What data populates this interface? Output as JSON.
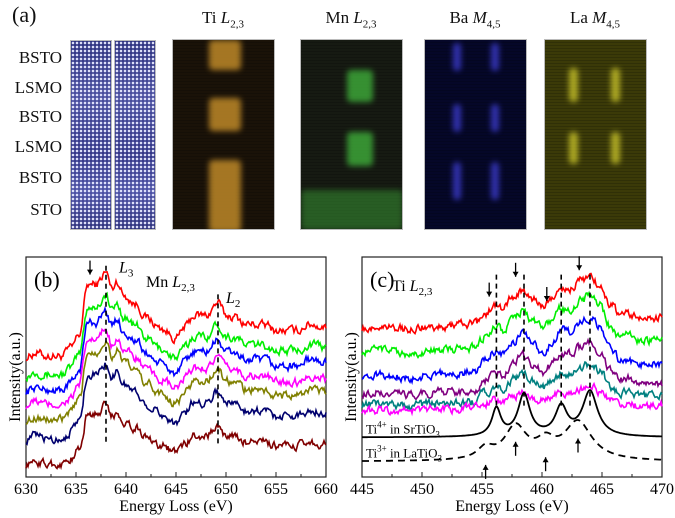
{
  "panel_a": {
    "label": "(a)",
    "layers": [
      "BSTO",
      "LSMO",
      "BSTO",
      "LSMO",
      "BSTO",
      "STO"
    ],
    "maps": [
      {
        "element": "Ti",
        "edge": "L",
        "sub": "2,3",
        "color": "#c8902a"
      },
      {
        "element": "Mn",
        "edge": "L",
        "sub": "2,3",
        "color": "#3fae3a"
      },
      {
        "element": "Ba",
        "edge": "M",
        "sub": "4,5",
        "color": "#3c3ccf"
      },
      {
        "element": "La",
        "edge": "M",
        "sub": "4,5",
        "color": "#c9c42a"
      }
    ]
  },
  "chart_data": [
    {
      "type": "line",
      "panel_label": "(b)",
      "title": "Mn L2,3",
      "title_parts": {
        "element": "Mn",
        "edge": "L",
        "sub": "2,3"
      },
      "xlabel": "Energy Loss (eV)",
      "ylabel": "Intensity(a.u.)",
      "xlim": [
        630,
        660
      ],
      "ylim": [
        0,
        10
      ],
      "xticks": [
        "630",
        "635",
        "640",
        "645",
        "650",
        "655",
        "660"
      ],
      "annotations": [
        {
          "text": "L",
          "sub": "3",
          "x": 639.3,
          "y": 9.3
        },
        {
          "text": "L",
          "sub": "2",
          "x": 650.0,
          "y": 7.9
        }
      ],
      "dashed_lines": [
        638.0,
        649.2
      ],
      "arrows_down": [
        636.4
      ],
      "shape": [
        [
          630,
          0
        ],
        [
          631,
          0.2
        ],
        [
          632,
          0.05
        ],
        [
          633.5,
          0.05
        ],
        [
          634.5,
          0.4
        ],
        [
          635.3,
          1.0
        ],
        [
          636.2,
          3.3
        ],
        [
          637,
          3.3
        ],
        [
          638,
          3.85
        ],
        [
          638.6,
          3.1
        ],
        [
          639.1,
          3.45
        ],
        [
          639.8,
          2.8
        ],
        [
          641,
          2.4
        ],
        [
          642,
          1.8
        ],
        [
          643.5,
          1.3
        ],
        [
          645,
          0.85
        ],
        [
          646,
          1.4
        ],
        [
          646.8,
          1.9
        ],
        [
          648,
          1.9
        ],
        [
          649.2,
          2.45
        ],
        [
          650,
          1.9
        ],
        [
          651,
          1.8
        ],
        [
          652,
          1.5
        ],
        [
          654,
          1.45
        ],
        [
          655,
          1.2
        ],
        [
          657,
          1.2
        ],
        [
          658.4,
          1.5
        ],
        [
          660,
          1.35
        ]
      ],
      "series": [
        {
          "name": "red",
          "color": "#ff0000",
          "offset": 5.45,
          "scale": 1.0
        },
        {
          "name": "green",
          "color": "#00ee00",
          "offset": 4.6,
          "scale": 0.95
        },
        {
          "name": "blue",
          "color": "#0000ff",
          "offset": 3.9,
          "scale": 0.95
        },
        {
          "name": "magenta",
          "color": "#ff00ff",
          "offset": 3.25,
          "scale": 0.9
        },
        {
          "name": "olive",
          "color": "#808000",
          "offset": 2.55,
          "scale": 0.95
        },
        {
          "name": "navy",
          "color": "#00006e",
          "offset": 1.7,
          "scale": 0.9
        },
        {
          "name": "dark-red",
          "color": "#800000",
          "offset": 0.55,
          "scale": 0.7
        }
      ]
    },
    {
      "type": "line",
      "panel_label": "(c)",
      "title": "Ti L2,3",
      "title_parts": {
        "element": "Ti",
        "edge": "L",
        "sub": "2,3"
      },
      "xlabel": "Energy Loss (eV)",
      "ylabel": "Intensity(a.u.)",
      "xlim": [
        445,
        470
      ],
      "ylim": [
        0,
        10
      ],
      "xticks": [
        "445",
        "450",
        "455",
        "460",
        "465",
        "470"
      ],
      "dashed_lines": [
        456.2,
        458.5,
        461.6,
        464.0
      ],
      "arrows_down": [
        455.6,
        457.8,
        460.4,
        463.1
      ],
      "arrows_up": [
        455.3,
        457.8,
        460.3,
        463.0
      ],
      "shape": [
        [
          445,
          0
        ],
        [
          447,
          0.05
        ],
        [
          449,
          -0.1
        ],
        [
          451,
          0.05
        ],
        [
          453,
          0.1
        ],
        [
          454.5,
          0.15
        ],
        [
          455.2,
          0.6
        ],
        [
          456.2,
          1.0
        ],
        [
          456.8,
          0.9
        ],
        [
          457.6,
          1.4
        ],
        [
          458.4,
          1.7
        ],
        [
          459.2,
          1.3
        ],
        [
          460.1,
          0.95
        ],
        [
          460.8,
          1.3
        ],
        [
          461.6,
          1.8
        ],
        [
          462.3,
          1.75
        ],
        [
          463.2,
          2.1
        ],
        [
          464.0,
          2.3
        ],
        [
          464.8,
          1.9
        ],
        [
          465.8,
          1.0
        ],
        [
          466.5,
          0.6
        ],
        [
          467,
          0.7
        ],
        [
          468,
          0.45
        ],
        [
          470,
          0.45
        ]
      ],
      "series": [
        {
          "name": "red",
          "color": "#ff0000",
          "offset": 6.8,
          "scale": 1.0
        },
        {
          "name": "green",
          "color": "#00ee00",
          "offset": 5.7,
          "scale": 1.1
        },
        {
          "name": "blue",
          "color": "#0000ff",
          "offset": 4.6,
          "scale": 1.15
        },
        {
          "name": "purple",
          "color": "#800080",
          "offset": 3.8,
          "scale": 1.0
        },
        {
          "name": "teal",
          "color": "#008080",
          "offset": 3.3,
          "scale": 0.8
        },
        {
          "name": "magenta",
          "color": "#ff00ff",
          "offset": 3.05,
          "scale": 0.45
        }
      ],
      "references": [
        {
          "label": "Ti",
          "charge": "4+",
          "host": "in SrTiO",
          "host_sub": "3",
          "color": "#000000",
          "dashed": false,
          "baseline": 1.8,
          "peaks": [
            {
              "x": 456.2,
              "h": 1.25,
              "w": 0.45
            },
            {
              "x": 458.5,
              "h": 1.9,
              "w": 0.6
            },
            {
              "x": 461.6,
              "h": 1.3,
              "w": 0.6
            },
            {
              "x": 464.0,
              "h": 2.05,
              "w": 0.75
            }
          ]
        },
        {
          "label": "Ti",
          "charge": "3+",
          "host": "in LaTiO",
          "host_sub": "3",
          "color": "#000000",
          "dashed": true,
          "baseline": 0.7,
          "peaks": [
            {
              "x": 455.3,
              "h": 0.5,
              "w": 0.8
            },
            {
              "x": 457.8,
              "h": 1.5,
              "w": 1.1
            },
            {
              "x": 460.3,
              "h": 0.7,
              "w": 0.9
            },
            {
              "x": 463.0,
              "h": 1.75,
              "w": 1.4
            }
          ]
        }
      ]
    }
  ]
}
